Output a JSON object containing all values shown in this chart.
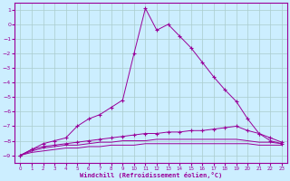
{
  "bg_color": "#cceeff",
  "grid_color": "#aacccc",
  "line_color": "#990099",
  "xlim": [
    -0.5,
    23.5
  ],
  "ylim": [
    -9.5,
    1.5
  ],
  "yticks": [
    1,
    0,
    -1,
    -2,
    -3,
    -4,
    -5,
    -6,
    -7,
    -8,
    -9
  ],
  "xticks": [
    0,
    1,
    2,
    3,
    4,
    5,
    6,
    7,
    8,
    9,
    10,
    11,
    12,
    13,
    14,
    15,
    16,
    17,
    18,
    19,
    20,
    21,
    22,
    23
  ],
  "xlabel": "Windchill (Refroidissement éolien,°C)",
  "curve1_x": [
    0,
    1,
    2,
    3,
    4,
    5,
    6,
    7,
    8,
    9,
    10,
    11,
    12,
    13,
    14,
    15,
    16,
    17,
    18,
    19,
    20,
    21,
    22,
    23
  ],
  "curve1_y": [
    -9.0,
    -8.6,
    -8.2,
    -8.0,
    -7.8,
    -7.0,
    -6.5,
    -6.2,
    -5.7,
    -5.2,
    -2.0,
    1.1,
    -0.4,
    0.0,
    -0.8,
    -1.6,
    -2.6,
    -3.6,
    -4.5,
    -5.3,
    -6.5,
    -7.5,
    -8.0,
    -8.2
  ],
  "curve2_x": [
    0,
    1,
    2,
    3,
    4,
    5,
    6,
    7,
    8,
    9,
    10,
    11,
    12,
    13,
    14,
    15,
    16,
    17,
    18,
    19,
    20,
    21,
    22,
    23
  ],
  "curve2_y": [
    -9.0,
    -8.6,
    -8.4,
    -8.3,
    -8.2,
    -8.1,
    -8.0,
    -7.9,
    -7.8,
    -7.7,
    -7.6,
    -7.5,
    -7.5,
    -7.4,
    -7.4,
    -7.3,
    -7.3,
    -7.2,
    -7.1,
    -7.0,
    -7.3,
    -7.5,
    -7.8,
    -8.1
  ],
  "curve3_x": [
    0,
    1,
    2,
    3,
    4,
    5,
    6,
    7,
    8,
    9,
    10,
    11,
    12,
    13,
    14,
    15,
    16,
    17,
    18,
    19,
    20,
    21,
    22,
    23
  ],
  "curve3_y": [
    -9.0,
    -8.7,
    -8.5,
    -8.4,
    -8.3,
    -8.3,
    -8.2,
    -8.1,
    -8.1,
    -8.0,
    -8.0,
    -8.0,
    -7.9,
    -7.9,
    -7.9,
    -7.9,
    -7.9,
    -7.9,
    -7.9,
    -7.9,
    -8.0,
    -8.1,
    -8.1,
    -8.2
  ],
  "curve4_x": [
    0,
    1,
    2,
    3,
    4,
    5,
    6,
    7,
    8,
    9,
    10,
    11,
    12,
    13,
    14,
    15,
    16,
    17,
    18,
    19,
    20,
    21,
    22,
    23
  ],
  "curve4_y": [
    -9.0,
    -8.8,
    -8.7,
    -8.6,
    -8.5,
    -8.5,
    -8.4,
    -8.4,
    -8.3,
    -8.3,
    -8.3,
    -8.2,
    -8.2,
    -8.2,
    -8.2,
    -8.2,
    -8.2,
    -8.2,
    -8.2,
    -8.2,
    -8.2,
    -8.3,
    -8.3,
    -8.3
  ]
}
